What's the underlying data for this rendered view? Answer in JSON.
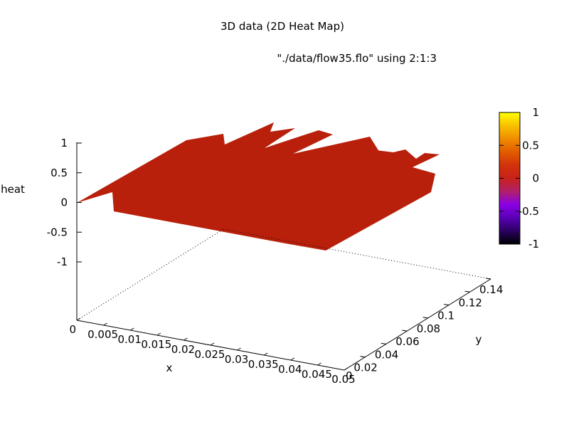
{
  "chart_data": {
    "type": "heatmap",
    "title": "3D data (2D Heat Map)",
    "key_title": "\"./data/flow35.flo\" using 2:1:3",
    "xlabel": "x",
    "ylabel": "y",
    "zlabel": "heat",
    "xlim": [
      0,
      0.05
    ],
    "ylim": [
      0,
      0.14
    ],
    "zlim": [
      -1,
      1
    ],
    "x_ticks": [
      "0",
      "0.005",
      "0.01",
      "0.015",
      "0.02",
      "0.025",
      "0.03",
      "0.035",
      "0.04",
      "0.045",
      "0.05"
    ],
    "y_ticks": [
      "0.02",
      "0.04",
      "0.06",
      "0.08",
      "0.1",
      "0.12",
      "0.14"
    ],
    "z_ticks": [
      "1",
      "0.5",
      "0",
      "-0.5",
      "-1"
    ],
    "colorbar_ticks": [
      "1",
      "0.5",
      "0",
      "-0.5",
      "-1"
    ],
    "colorbar_range": [
      -1,
      1
    ],
    "colorbar_palette": [
      "#000000",
      "#2a0062",
      "#5a00b4",
      "#8a00e6",
      "#b0206a",
      "#c8221a",
      "#d2320b",
      "#e25c00",
      "#f08c00",
      "#f8c000",
      "#ffff00"
    ],
    "surface_value": 0,
    "surface_color": "#b8200c",
    "grid": false,
    "legend_position": "right"
  }
}
